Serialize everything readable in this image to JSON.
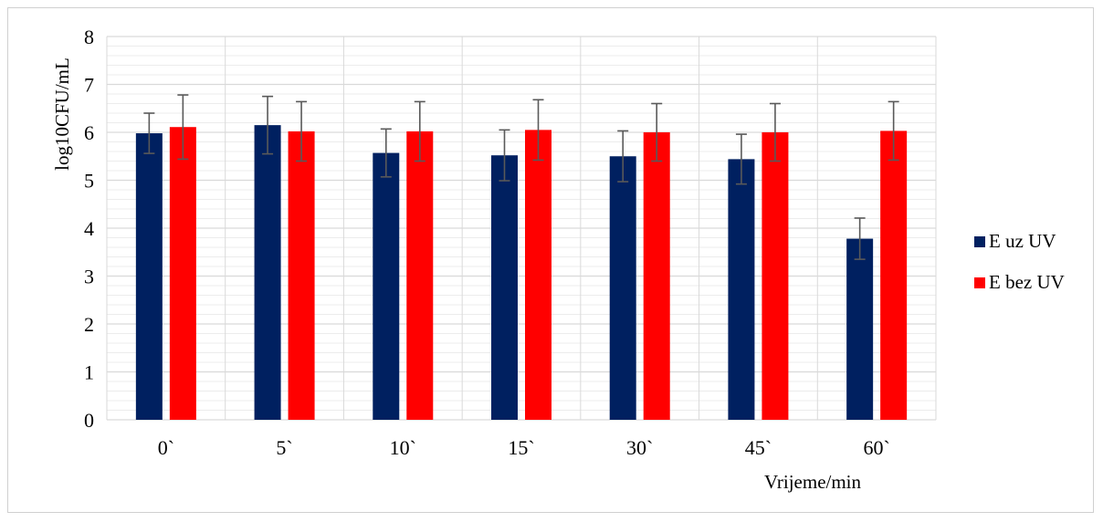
{
  "chart_data": {
    "type": "bar",
    "title": "",
    "xlabel": "Vrijeme/min",
    "ylabel": "log10CFU/mL",
    "ylim": [
      0,
      8
    ],
    "yticks": [
      0,
      1,
      2,
      3,
      4,
      5,
      6,
      7,
      8
    ],
    "minor_grid_step": 0.2,
    "grid": true,
    "legend_position": "right",
    "categories": [
      "0`",
      "5`",
      "10`",
      "15`",
      "30`",
      "45`",
      "60`"
    ],
    "series": [
      {
        "name": "E uz UV",
        "color": "#002060",
        "values": [
          5.98,
          6.15,
          5.57,
          5.52,
          5.5,
          5.44,
          3.78
        ],
        "error": [
          0.42,
          0.6,
          0.5,
          0.53,
          0.53,
          0.52,
          0.43
        ]
      },
      {
        "name": "E bez UV",
        "color": "#ff0000",
        "values": [
          6.11,
          6.02,
          6.02,
          6.05,
          6.0,
          6.0,
          6.03
        ],
        "error": [
          0.67,
          0.62,
          0.62,
          0.63,
          0.6,
          0.6,
          0.61
        ]
      }
    ],
    "colors": {
      "grid_major": "#d9d9d9",
      "grid_minor": "#ececec",
      "error_bar": "#595959"
    }
  }
}
